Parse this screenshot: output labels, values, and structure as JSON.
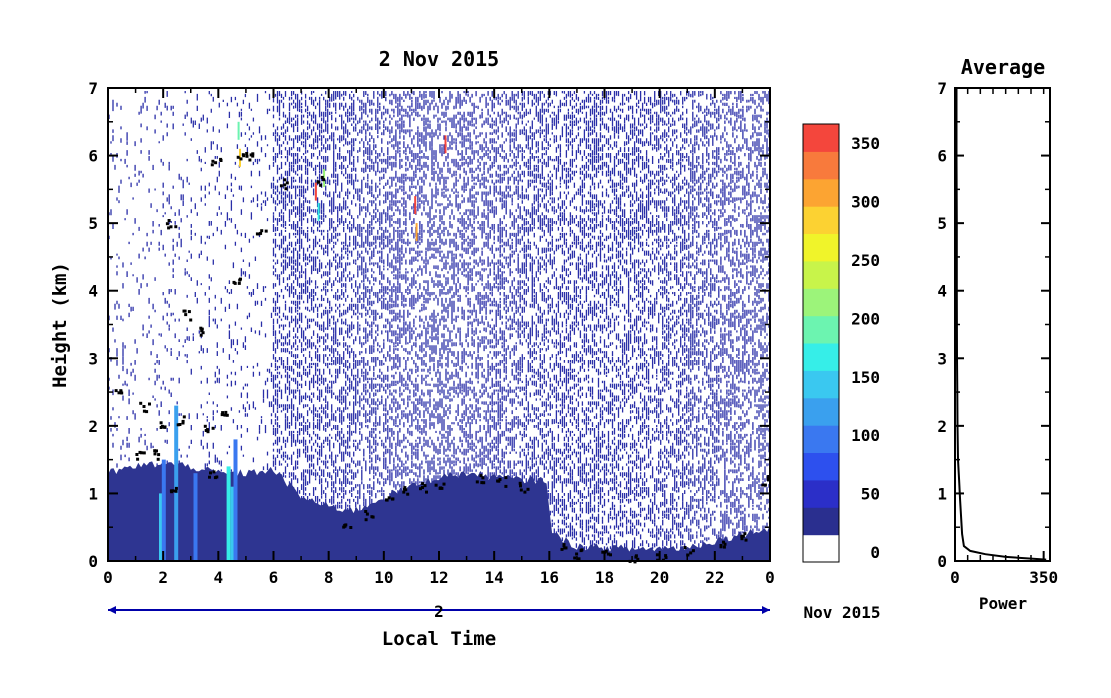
{
  "chart_data": [
    {
      "type": "heatmap",
      "title": "2 Nov 2015",
      "xlabel": "Local Time",
      "ylabel": "Height (km)",
      "xlim": [
        0,
        24
      ],
      "ylim": [
        0,
        7
      ],
      "x_ticks": [
        "0",
        "2",
        "4",
        "6",
        "8",
        "10",
        "12",
        "14",
        "16",
        "18",
        "20",
        "22",
        "0"
      ],
      "x_tick_values": [
        0,
        2,
        4,
        6,
        8,
        10,
        12,
        14,
        16,
        18,
        20,
        22,
        24
      ],
      "y_ticks": [
        "0",
        "1",
        "2",
        "3",
        "4",
        "5",
        "6",
        "7"
      ],
      "y_tick_values": [
        0,
        1,
        2,
        3,
        4,
        5,
        6,
        7
      ],
      "date_bar": {
        "day_label": "2",
        "month_year": "Nov 2015"
      },
      "colorbar": {
        "min": 0,
        "max": 375,
        "tick_labels": [
          "0",
          "50",
          "100",
          "150",
          "200",
          "250",
          "300",
          "350"
        ],
        "tick_values": [
          0,
          50,
          100,
          150,
          200,
          250,
          300,
          350
        ],
        "colors": [
          "#ffffff",
          "#2a2f8f",
          "#2b2fc8",
          "#2d50ee",
          "#3a78f0",
          "#3aa0ee",
          "#3ac8f0",
          "#36eee8",
          "#6cf4b0",
          "#9cf47a",
          "#c8f44a",
          "#f0f42a",
          "#fcd232",
          "#fca432",
          "#f87a3c",
          "#f4463c"
        ]
      },
      "surface_layer_top_km": [
        [
          0,
          1.3
        ],
        [
          1,
          1.4
        ],
        [
          2,
          1.45
        ],
        [
          3,
          1.4
        ],
        [
          4,
          1.3
        ],
        [
          5,
          1.3
        ],
        [
          6,
          1.35
        ],
        [
          7,
          0.95
        ],
        [
          8,
          0.8
        ],
        [
          9,
          0.75
        ],
        [
          10,
          0.95
        ],
        [
          11,
          1.1
        ],
        [
          12,
          1.25
        ],
        [
          13,
          1.3
        ],
        [
          14,
          1.25
        ],
        [
          15,
          1.2
        ],
        [
          15.9,
          1.2
        ],
        [
          16.1,
          0.4
        ],
        [
          17,
          0.22
        ],
        [
          19,
          0.18
        ],
        [
          21,
          0.2
        ],
        [
          23,
          0.4
        ],
        [
          24,
          0.5
        ]
      ],
      "cloud_points": [
        [
          0.35,
          2.5
        ],
        [
          1.1,
          1.6
        ],
        [
          1.3,
          2.3
        ],
        [
          1.6,
          1.6
        ],
        [
          2.0,
          2.0
        ],
        [
          2.25,
          5.0
        ],
        [
          2.3,
          1.1
        ],
        [
          2.6,
          2.1
        ],
        [
          2.8,
          3.65
        ],
        [
          3.3,
          3.4
        ],
        [
          3.6,
          2.0
        ],
        [
          3.8,
          1.3
        ],
        [
          3.9,
          5.9
        ],
        [
          4.2,
          2.2
        ],
        [
          4.6,
          4.2
        ],
        [
          4.8,
          6.0
        ],
        [
          5.1,
          6.0
        ],
        [
          5.5,
          4.9
        ],
        [
          6.4,
          5.6
        ],
        [
          7.6,
          5.65
        ],
        [
          8.6,
          0.5
        ],
        [
          9.4,
          0.7
        ],
        [
          10.2,
          0.9
        ],
        [
          10.8,
          1.05
        ],
        [
          11.4,
          1.1
        ],
        [
          12.0,
          1.1
        ],
        [
          13.5,
          1.25
        ],
        [
          14.2,
          1.2
        ],
        [
          15.0,
          1.1
        ],
        [
          16.4,
          0.25
        ],
        [
          17.0,
          0.12
        ],
        [
          18.0,
          0.1
        ],
        [
          19.0,
          0.08
        ],
        [
          20.0,
          0.09
        ],
        [
          21.0,
          0.15
        ],
        [
          22.2,
          0.25
        ],
        [
          23.0,
          0.4
        ],
        [
          23.8,
          1.2
        ]
      ]
    },
    {
      "type": "line",
      "title": "Average",
      "xlabel": "Power",
      "xlim": [
        0,
        375
      ],
      "ylim": [
        0,
        7
      ],
      "x_ticks": [
        "0",
        "350"
      ],
      "x_tick_values": [
        0,
        350
      ],
      "y_ticks": [
        "0",
        "1",
        "2",
        "3",
        "4",
        "5",
        "6",
        "7"
      ],
      "y_tick_values": [
        0,
        1,
        2,
        3,
        4,
        5,
        6,
        7
      ],
      "x": [
        360,
        200,
        120,
        60,
        35,
        28,
        20,
        16,
        12,
        10,
        9,
        8,
        7,
        7,
        6,
        6,
        6
      ],
      "y": [
        0.02,
        0.06,
        0.1,
        0.15,
        0.22,
        0.4,
        0.9,
        1.2,
        1.5,
        2.0,
        2.5,
        3.0,
        4.0,
        5.0,
        6.0,
        6.5,
        7.0
      ]
    }
  ]
}
